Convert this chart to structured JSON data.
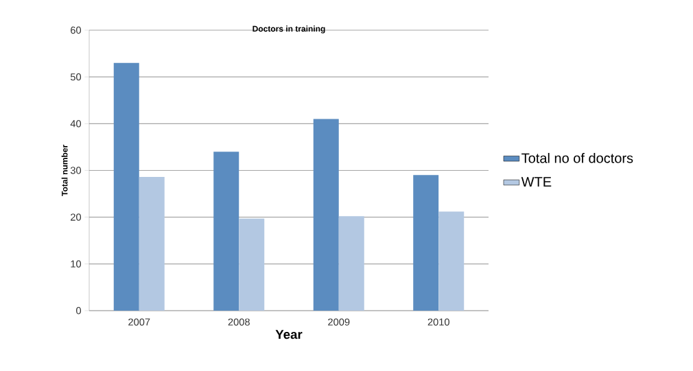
{
  "chart_data": {
    "type": "bar",
    "title": "Doctors in training",
    "xlabel": "Year",
    "ylabel": "Total number",
    "categories": [
      "2007",
      "2008",
      "2009",
      "2010"
    ],
    "series": [
      {
        "name": "Total no of doctors",
        "color": "#5b8cc0",
        "values": [
          53,
          34,
          41,
          29
        ]
      },
      {
        "name": "WTE",
        "color": "#b3c8e2",
        "values": [
          28.6,
          19.7,
          20.2,
          21.2
        ]
      }
    ],
    "ylim": [
      0,
      60
    ],
    "yticks": [
      0,
      10,
      20,
      30,
      40,
      50,
      60
    ],
    "grid": "y",
    "legend": "right"
  }
}
